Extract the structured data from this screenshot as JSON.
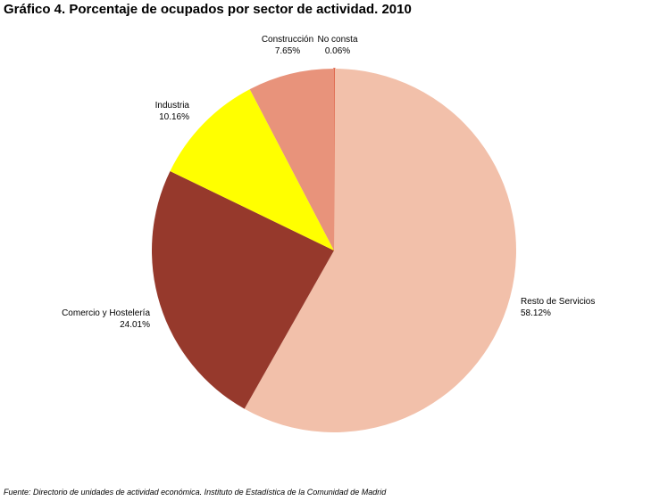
{
  "chart_data": {
    "type": "pie",
    "title": "Gráfico 4. Porcentaje de ocupados por sector de actividad. 2010",
    "source": "Fuente: Directorio de unidades de actividad económica. Instituto de Estadística de la Comunidad de Madrid",
    "slices": [
      {
        "label": "No consta",
        "value": 0.06,
        "value_label": "0.06%",
        "color": "#d84a2e"
      },
      {
        "label": "Resto de Servicios",
        "value": 58.12,
        "value_label": "58.12%",
        "color": "#f2c0aa"
      },
      {
        "label": "Comercio y Hostelería",
        "value": 24.01,
        "value_label": "24.01%",
        "color": "#96392c"
      },
      {
        "label": "Industria",
        "value": 10.16,
        "value_label": "10.16%",
        "color": "#ffff00"
      },
      {
        "label": "Construcción",
        "value": 7.65,
        "value_label": "7.65%",
        "color": "#e8937b"
      }
    ],
    "legend": "none"
  }
}
